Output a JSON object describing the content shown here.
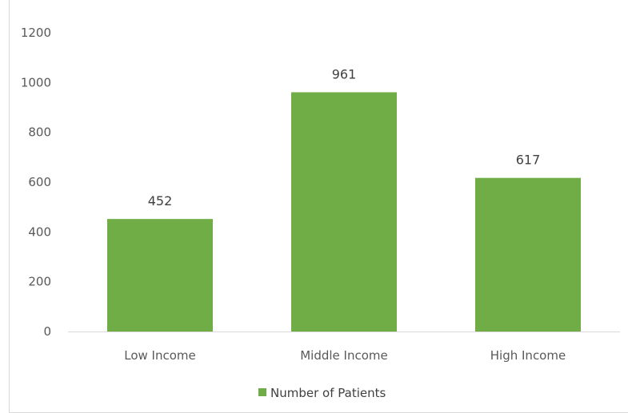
{
  "chart_data": {
    "type": "bar",
    "categories": [
      "Low Income",
      "Middle Income",
      "High Income"
    ],
    "series": [
      {
        "name": "Number of Patients",
        "values": [
          452,
          961,
          617
        ],
        "color": "#70AD47"
      }
    ],
    "data_labels": [
      "452",
      "961",
      "617"
    ],
    "ylim": [
      0,
      1200
    ],
    "y_ticks": [
      0,
      200,
      400,
      600,
      800,
      1000,
      1200
    ],
    "y_tick_labels": [
      "0",
      "200",
      "400",
      "600",
      "800",
      "1000",
      "1200"
    ],
    "grid": false,
    "legend": {
      "position": "bottom",
      "label": "Number of Patients"
    },
    "axis_color": "#d9d9d9",
    "border_color": "#d9d9d9"
  }
}
